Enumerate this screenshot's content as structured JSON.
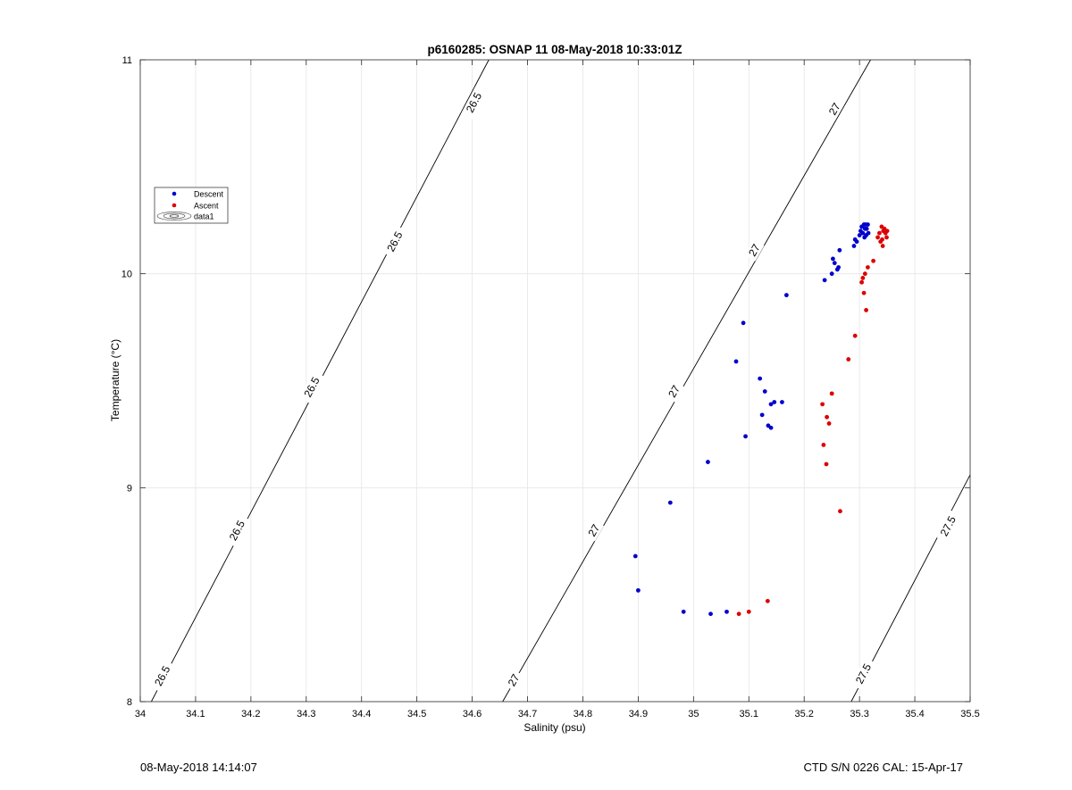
{
  "footer": {
    "left": "08-May-2018 14:14:07",
    "right": "CTD S/N 0226  CAL: 15-Apr-17"
  },
  "chart_data": {
    "type": "scatter",
    "title": "p6160285: OSNAP 11 08-May-2018 10:33:01Z",
    "xlabel": "Salinity (psu)",
    "ylabel": "Temperature (°C)",
    "xlim": [
      34,
      35.5
    ],
    "ylim": [
      8,
      11
    ],
    "xticks": [
      34,
      34.1,
      34.2,
      34.3,
      34.4,
      34.5,
      34.6,
      34.7,
      34.8,
      34.9,
      35,
      35.1,
      35.2,
      35.3,
      35.4,
      35.5
    ],
    "xtick_labels": [
      "34",
      "34.1",
      "34.2",
      "34.3",
      "34.4",
      "34.5",
      "34.6",
      "34.7",
      "34.8",
      "34.9",
      "35",
      "35.1",
      "35.2",
      "35.3",
      "35.4",
      "35.5"
    ],
    "yticks": [
      8,
      9,
      10,
      11
    ],
    "ytick_labels": [
      "8",
      "9",
      "10",
      "11"
    ],
    "grid": true,
    "legend_position": "upper-left",
    "series": [
      {
        "name": "Descent",
        "color": "#0000cc",
        "points": [
          [
            34.895,
            8.68
          ],
          [
            34.9,
            8.52
          ],
          [
            34.958,
            8.93
          ],
          [
            34.982,
            8.42
          ],
          [
            35.026,
            9.12
          ],
          [
            35.031,
            8.41
          ],
          [
            35.06,
            8.42
          ],
          [
            35.077,
            9.59
          ],
          [
            35.09,
            9.77
          ],
          [
            35.094,
            9.24
          ],
          [
            35.12,
            9.51
          ],
          [
            35.124,
            9.34
          ],
          [
            35.129,
            9.45
          ],
          [
            35.135,
            9.29
          ],
          [
            35.14,
            9.28
          ],
          [
            35.14,
            9.39
          ],
          [
            35.146,
            9.4
          ],
          [
            35.16,
            9.4
          ],
          [
            35.168,
            9.9
          ],
          [
            35.237,
            9.97
          ],
          [
            35.25,
            10.0
          ],
          [
            35.252,
            10.07
          ],
          [
            35.255,
            10.05
          ],
          [
            35.26,
            10.02
          ],
          [
            35.262,
            10.03
          ],
          [
            35.264,
            10.11
          ],
          [
            35.29,
            10.13
          ],
          [
            35.292,
            10.16
          ],
          [
            35.295,
            10.15
          ],
          [
            35.3,
            10.18
          ],
          [
            35.302,
            10.2
          ],
          [
            35.304,
            10.22
          ],
          [
            35.306,
            10.19
          ],
          [
            35.308,
            10.23
          ],
          [
            35.309,
            10.17
          ],
          [
            35.31,
            10.21
          ],
          [
            35.311,
            10.23
          ],
          [
            35.312,
            10.18
          ],
          [
            35.313,
            10.21
          ],
          [
            35.315,
            10.23
          ],
          [
            35.316,
            10.19
          ]
        ]
      },
      {
        "name": "Ascent",
        "color": "#dd0000",
        "points": [
          [
            35.082,
            8.41
          ],
          [
            35.1,
            8.42
          ],
          [
            35.134,
            8.47
          ],
          [
            35.233,
            9.39
          ],
          [
            35.235,
            9.2
          ],
          [
            35.24,
            9.11
          ],
          [
            35.241,
            9.33
          ],
          [
            35.245,
            9.3
          ],
          [
            35.25,
            9.44
          ],
          [
            35.265,
            8.89
          ],
          [
            35.28,
            9.6
          ],
          [
            35.292,
            9.71
          ],
          [
            35.304,
            9.96
          ],
          [
            35.306,
            9.98
          ],
          [
            35.308,
            9.91
          ],
          [
            35.31,
            10.0
          ],
          [
            35.312,
            9.83
          ],
          [
            35.315,
            10.03
          ],
          [
            35.325,
            10.06
          ],
          [
            35.333,
            10.17
          ],
          [
            35.336,
            10.19
          ],
          [
            35.338,
            10.15
          ],
          [
            35.34,
            10.22
          ],
          [
            35.341,
            10.16
          ],
          [
            35.342,
            10.13
          ],
          [
            35.343,
            10.2
          ],
          [
            35.345,
            10.21
          ],
          [
            35.347,
            10.19
          ],
          [
            35.349,
            10.17
          ],
          [
            35.35,
            10.2
          ]
        ]
      }
    ],
    "contours": {
      "name": "data1",
      "lines": [
        {
          "level": 26.5,
          "points": [
            [
              34.02,
              8
            ],
            [
              34.63,
              11
            ]
          ],
          "labels": [
            {
              "text": "26.5",
              "x": 34.04,
              "y": 8.12
            },
            {
              "text": "26.5",
              "x": 34.175,
              "y": 8.8
            },
            {
              "text": "26.5",
              "x": 34.31,
              "y": 9.47
            },
            {
              "text": "26.5",
              "x": 34.46,
              "y": 10.15
            },
            {
              "text": "26.5",
              "x": 34.603,
              "y": 10.8
            }
          ]
        },
        {
          "level": 27,
          "points": [
            [
              34.655,
              8
            ],
            [
              35.32,
              11
            ]
          ],
          "labels": [
            {
              "text": "27",
              "x": 34.675,
              "y": 8.1
            },
            {
              "text": "27",
              "x": 34.82,
              "y": 8.8
            },
            {
              "text": "27",
              "x": 34.965,
              "y": 9.45
            },
            {
              "text": "27",
              "x": 35.11,
              "y": 10.11
            },
            {
              "text": "27",
              "x": 35.255,
              "y": 10.77
            }
          ]
        },
        {
          "level": 27.5,
          "points": [
            [
              35.285,
              8
            ],
            [
              35.5,
              9.06
            ]
          ],
          "labels": [
            {
              "text": "27.5",
              "x": 35.307,
              "y": 8.13
            },
            {
              "text": "27.5",
              "x": 35.46,
              "y": 8.82
            }
          ]
        }
      ]
    },
    "legend": [
      {
        "label": "Descent",
        "marker": "dot",
        "color": "#0000cc"
      },
      {
        "label": "Ascent",
        "marker": "dot",
        "color": "#dd0000"
      },
      {
        "label": "data1",
        "marker": "contour"
      }
    ]
  }
}
